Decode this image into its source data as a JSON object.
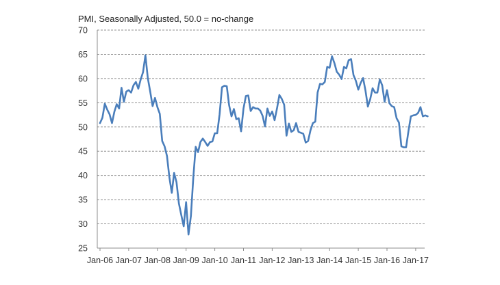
{
  "subtitle": "PMI, Seasonally Adjusted, 50.0 = no-change",
  "colors": {
    "line": "#4a7ebb",
    "grid": "#8c8c8c",
    "axis": "#8c8c8c",
    "text": "#333333"
  },
  "chart_data": {
    "type": "line",
    "title": "",
    "subtitle": "PMI, Seasonally Adjusted, 50.0 = no-change",
    "xlabel": "",
    "ylabel": "",
    "ylim": [
      25,
      70
    ],
    "yticks": [
      25,
      30,
      35,
      40,
      45,
      50,
      55,
      60,
      65,
      70
    ],
    "xtick_labels": [
      "Jan-06",
      "Jan-07",
      "Jan-08",
      "Jan-09",
      "Jan-10",
      "Jan-11",
      "Jan-12",
      "Jan-13",
      "Jan-14",
      "Jan-15",
      "Jan-16",
      "Jan-17"
    ],
    "grid": "horizontal dashed",
    "legend": "none",
    "series": [
      {
        "values": [
          50.8,
          51.9,
          54.8,
          53.6,
          52.6,
          50.8,
          53.1,
          54.7,
          53.8,
          58.1,
          55.2,
          57.3,
          57.6,
          57.1,
          58.6,
          59.3,
          57.9,
          59.8,
          61.3,
          64.8,
          60.1,
          57.3,
          54.3,
          56.0,
          54.1,
          52.7,
          47.1,
          46.0,
          44.0,
          39.6,
          36.4,
          40.5,
          38.6,
          34.2,
          31.8,
          29.5,
          34.5,
          27.8,
          31.6,
          39.5,
          45.9,
          44.8,
          46.9,
          47.6,
          46.9,
          46.1,
          46.9,
          47.0,
          48.7,
          48.7,
          52.6,
          58.2,
          58.5,
          58.4,
          54.5,
          52.2,
          53.7,
          51.6,
          51.8,
          49.1,
          53.8,
          56.4,
          56.5,
          53.3,
          54.1,
          53.8,
          53.8,
          53.4,
          52.3,
          50.1,
          53.8,
          52.3,
          53.2,
          51.4,
          53.8,
          56.6,
          55.8,
          54.6,
          48.2,
          50.7,
          49.0,
          49.3,
          50.8,
          49.0,
          48.8,
          48.6,
          46.8,
          47.1,
          49.3,
          50.8,
          51.1,
          57.1,
          58.9,
          58.8,
          59.3,
          62.4,
          62.2,
          64.6,
          63.2,
          61.4,
          60.8,
          59.9,
          62.4,
          62.1,
          63.8,
          64.0,
          60.7,
          59.5,
          57.7,
          59.1,
          60.1,
          57.5,
          54.2,
          55.8,
          58.0,
          57.1,
          57.1,
          59.8,
          58.6,
          55.2,
          57.6,
          54.9,
          54.3,
          54.1,
          51.8,
          50.9,
          46.0,
          45.8,
          45.8,
          49.2,
          52.2,
          52.4,
          52.5,
          52.9,
          54.1,
          52.2,
          52.4,
          52.2
        ]
      }
    ]
  }
}
